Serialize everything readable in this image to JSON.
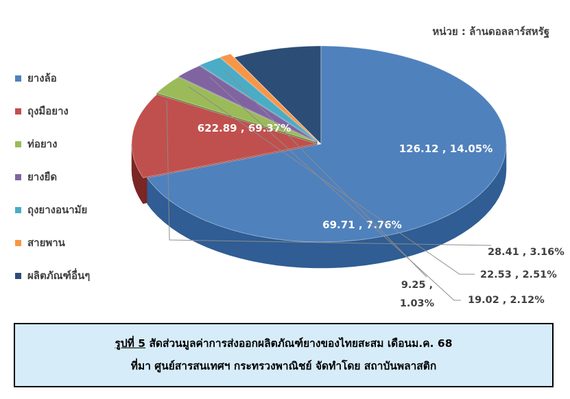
{
  "unit_text": "หน่วย : ล้านดอลลาร์สหรัฐ",
  "chart_data": {
    "type": "pie",
    "style": "3d-exploded",
    "legend_position": "left",
    "slices": [
      {
        "name": "ยางล้อ",
        "value": 622.89,
        "percent": 69.37,
        "label": "622.89 , 69.37%",
        "color": "#4f81bd",
        "side": "#2f5d94"
      },
      {
        "name": "ถุงมือยาง",
        "value": 126.12,
        "percent": 14.05,
        "label": "126.12 , 14.05%",
        "color": "#c0504d",
        "side": "#7a2624"
      },
      {
        "name": "ท่อยาง",
        "value": 28.41,
        "percent": 3.16,
        "label": "28.41 , 3.16%",
        "color": "#9bbb59",
        "side": "#5c7530"
      },
      {
        "name": "ยางยืด",
        "value": 22.53,
        "percent": 2.51,
        "label": "22.53 , 2.51%",
        "color": "#8064a2",
        "side": "#4d3a66"
      },
      {
        "name": "ถุงยางอนามัย",
        "value": 19.02,
        "percent": 2.12,
        "label": "19.02 , 2.12%",
        "color": "#4bacc6",
        "side": "#246b7e"
      },
      {
        "name": "สายพาน",
        "value": 9.25,
        "percent": 1.03,
        "label_line1": "9.25 ,",
        "label_line2": "1.03%",
        "color": "#f79646",
        "side": "#a8561a"
      },
      {
        "name": "ผลิตภัณฑ์อื่นๆ",
        "value": 69.71,
        "percent": 7.76,
        "label": "69.71 , 7.76%",
        "color": "#2c4d75",
        "side": "#14253a"
      }
    ]
  },
  "caption": {
    "prefix": "รูปที่ 5",
    "line1": " สัดส่วนมูลค่าการส่งออกผลิตภัณฑ์ยางของไทยสะสม เดือนม.ค. 68",
    "line2": "ที่มา ศูนย์สารสนเทศฯ กระทรวงพาณิชย์ จัดทำโดย สถาบันพลาสติก"
  }
}
